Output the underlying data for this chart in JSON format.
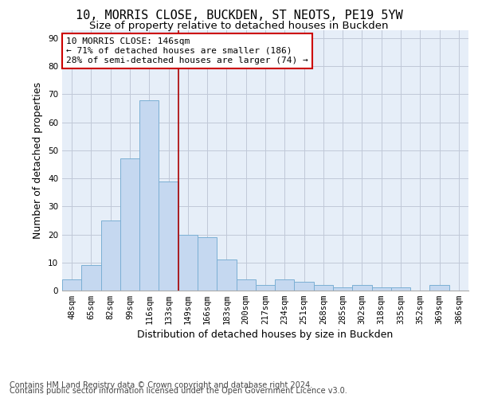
{
  "title_line1": "10, MORRIS CLOSE, BUCKDEN, ST NEOTS, PE19 5YW",
  "title_line2": "Size of property relative to detached houses in Buckden",
  "xlabel": "Distribution of detached houses by size in Buckden",
  "ylabel": "Number of detached properties",
  "bar_labels": [
    "48sqm",
    "65sqm",
    "82sqm",
    "99sqm",
    "116sqm",
    "133sqm",
    "149sqm",
    "166sqm",
    "183sqm",
    "200sqm",
    "217sqm",
    "234sqm",
    "251sqm",
    "268sqm",
    "285sqm",
    "302sqm",
    "318sqm",
    "335sqm",
    "352sqm",
    "369sqm",
    "386sqm"
  ],
  "bar_values": [
    4,
    9,
    25,
    47,
    68,
    39,
    20,
    19,
    11,
    4,
    2,
    4,
    3,
    2,
    1,
    2,
    1,
    1,
    0,
    2,
    0
  ],
  "bar_color": "#c5d8f0",
  "bar_edge_color": "#7bafd4",
  "vline_x": 5.5,
  "vline_color": "#aa0000",
  "annotation_line1": "10 MORRIS CLOSE: 146sqm",
  "annotation_line2": "← 71% of detached houses are smaller (186)",
  "annotation_line3": "28% of semi-detached houses are larger (74) →",
  "annotation_box_color": "#ffffff",
  "annotation_box_edge": "#cc0000",
  "ylim": [
    0,
    93
  ],
  "yticks": [
    0,
    10,
    20,
    30,
    40,
    50,
    60,
    70,
    80,
    90
  ],
  "grid_color": "#c0c8d8",
  "bg_color": "#e6eef8",
  "footer_line1": "Contains HM Land Registry data © Crown copyright and database right 2024.",
  "footer_line2": "Contains public sector information licensed under the Open Government Licence v3.0.",
  "title_fontsize": 11,
  "subtitle_fontsize": 9.5,
  "axis_label_fontsize": 9,
  "tick_fontsize": 7.5,
  "annotation_fontsize": 8,
  "footer_fontsize": 7
}
